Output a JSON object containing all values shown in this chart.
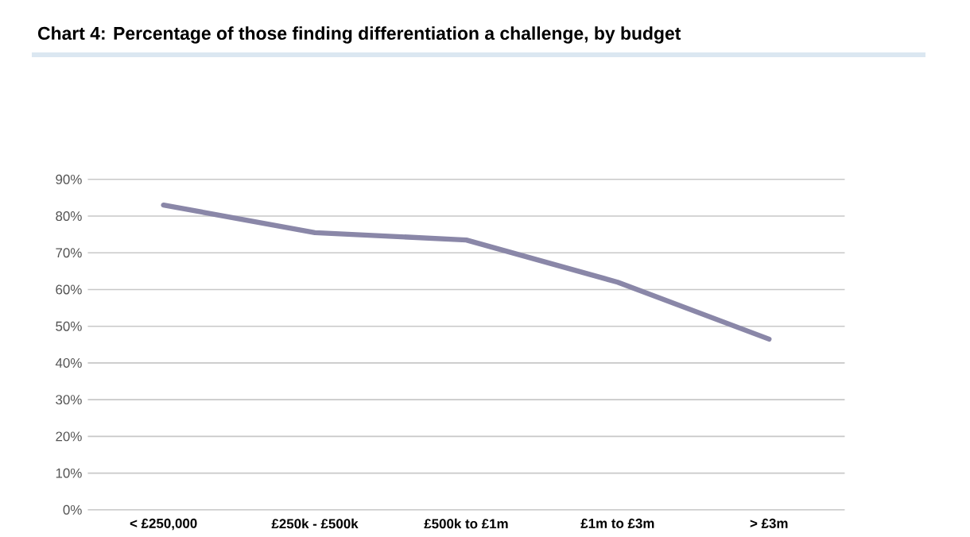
{
  "chart_data": {
    "type": "line",
    "title": "Chart 4: Percentage of those finding differentiation a challenge, by budget",
    "categories": [
      "< £250,000",
      "£250k - £500k",
      "£500k to £1m",
      "£1m to £3m",
      "> £3m"
    ],
    "series": [
      {
        "color": "#8a87a8",
        "values": [
          83,
          75.5,
          73.5,
          62,
          46.5
        ]
      }
    ],
    "ylim": [
      0,
      90
    ],
    "yticks": [
      {
        "value": 0,
        "label": "0%"
      },
      {
        "value": 10,
        "label": "10%"
      },
      {
        "value": 20,
        "label": "20%"
      },
      {
        "value": 30,
        "label": "30%"
      },
      {
        "value": 40,
        "label": "40%"
      },
      {
        "value": 50,
        "label": "50%"
      },
      {
        "value": 60,
        "label": "60%"
      },
      {
        "value": 70,
        "label": "70%"
      },
      {
        "value": 80,
        "label": "80%"
      },
      {
        "value": 90,
        "label": "90%"
      }
    ],
    "grid": "y",
    "marker": "none",
    "line_style": "solid"
  }
}
